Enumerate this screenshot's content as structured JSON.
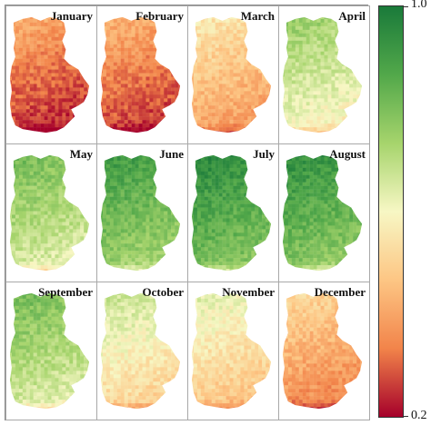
{
  "months": [
    {
      "label": "January",
      "level": 0.12
    },
    {
      "label": "February",
      "level": 0.14
    },
    {
      "label": "March",
      "level": 0.3
    },
    {
      "label": "April",
      "level": 0.55
    },
    {
      "label": "May",
      "level": 0.62
    },
    {
      "label": "June",
      "level": 0.74
    },
    {
      "label": "July",
      "level": 0.8
    },
    {
      "label": "August",
      "level": 0.78
    },
    {
      "label": "September",
      "level": 0.62
    },
    {
      "label": "October",
      "level": 0.45
    },
    {
      "label": "November",
      "level": 0.4
    },
    {
      "label": "December",
      "level": 0.25
    }
  ],
  "colorbar": {
    "max_label": "1.0",
    "min_label": "0.2",
    "colors": [
      "#1a7a3a",
      "#52a84a",
      "#a6d46c",
      "#f7f7c4",
      "#fdc684",
      "#f2844a",
      "#a5002a"
    ]
  }
}
